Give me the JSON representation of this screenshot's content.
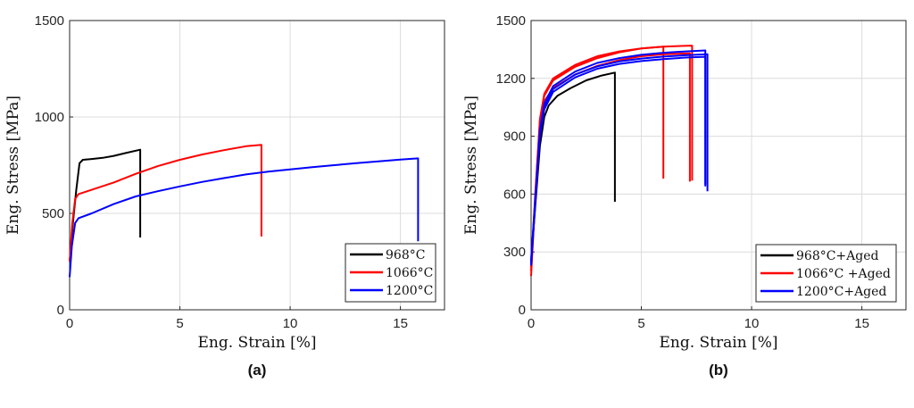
{
  "chart_data": [
    {
      "type": "line",
      "caption": "(a)",
      "xlabel": "Eng. Strain [%]",
      "ylabel": "Eng. Stress [MPa]",
      "xlim": [
        0,
        17
      ],
      "ylim": [
        0,
        1500
      ],
      "xticks": [
        0,
        5,
        10,
        15
      ],
      "yticks": [
        0,
        500,
        1000,
        1500
      ],
      "grid": true,
      "legend_position": "bottom-right",
      "series": [
        {
          "name": "968°C",
          "color": "#000000",
          "curves": [
            [
              [
                0,
                250
              ],
              [
                0.15,
                450
              ],
              [
                0.3,
                620
              ],
              [
                0.45,
                760
              ],
              [
                0.6,
                778
              ],
              [
                1,
                782
              ],
              [
                1.5,
                788
              ],
              [
                2,
                798
              ],
              [
                2.5,
                812
              ],
              [
                3.2,
                830
              ],
              [
                3.2,
                375
              ]
            ]
          ]
        },
        {
          "name": "1066°C",
          "color": "#ff0000",
          "curves": [
            [
              [
                0,
                250
              ],
              [
                0.12,
                450
              ],
              [
                0.25,
                575
              ],
              [
                0.4,
                600
              ],
              [
                0.8,
                615
              ],
              [
                2,
                660
              ],
              [
                3,
                705
              ],
              [
                4,
                745
              ],
              [
                5,
                778
              ],
              [
                6,
                805
              ],
              [
                7,
                828
              ],
              [
                8,
                848
              ],
              [
                8.7,
                855
              ],
              [
                8.7,
                380
              ]
            ]
          ]
        },
        {
          "name": "1200°C",
          "color": "#0000ff",
          "curves": [
            [
              [
                0,
                170
              ],
              [
                0.1,
                330
              ],
              [
                0.25,
                450
              ],
              [
                0.4,
                475
              ],
              [
                1,
                500
              ],
              [
                2,
                548
              ],
              [
                3,
                588
              ],
              [
                4,
                615
              ],
              [
                5,
                640
              ],
              [
                6,
                663
              ],
              [
                7,
                683
              ],
              [
                8,
                702
              ],
              [
                9,
                716
              ],
              [
                10,
                728
              ],
              [
                11,
                740
              ],
              [
                12,
                750
              ],
              [
                13,
                760
              ],
              [
                14,
                770
              ],
              [
                15,
                779
              ],
              [
                15.8,
                785
              ],
              [
                15.8,
                355
              ]
            ]
          ]
        }
      ]
    },
    {
      "type": "line",
      "caption": "(b)",
      "xlabel": "Eng. Strain [%]",
      "ylabel": "Eng. Stress [MPa]",
      "xlim": [
        0,
        17
      ],
      "ylim": [
        0,
        1500
      ],
      "xticks": [
        0,
        5,
        10,
        15
      ],
      "yticks": [
        0,
        300,
        600,
        900,
        1200,
        1500
      ],
      "grid": true,
      "legend_position": "bottom-right",
      "series": [
        {
          "name": "968°C+Aged",
          "color": "#000000",
          "curves": [
            [
              [
                0,
                250
              ],
              [
                0.2,
                550
              ],
              [
                0.4,
                850
              ],
              [
                0.6,
                1000
              ],
              [
                0.8,
                1060
              ],
              [
                1.2,
                1110
              ],
              [
                1.8,
                1150
              ],
              [
                2.5,
                1190
              ],
              [
                3.2,
                1215
              ],
              [
                3.8,
                1230
              ],
              [
                3.8,
                560
              ]
            ]
          ]
        },
        {
          "name": "1066°C +Aged",
          "color": "#ff0000",
          "curves": [
            [
              [
                0,
                175
              ],
              [
                0.2,
                600
              ],
              [
                0.4,
                980
              ],
              [
                0.6,
                1110
              ],
              [
                1,
                1190
              ],
              [
                2,
                1260
              ],
              [
                3,
                1305
              ],
              [
                4,
                1335
              ],
              [
                5,
                1355
              ],
              [
                6,
                1365
              ],
              [
                6,
                680
              ]
            ],
            [
              [
                0,
                200
              ],
              [
                0.2,
                600
              ],
              [
                0.4,
                950
              ],
              [
                0.6,
                1080
              ],
              [
                1,
                1150
              ],
              [
                2,
                1220
              ],
              [
                3,
                1265
              ],
              [
                4,
                1295
              ],
              [
                5,
                1315
              ],
              [
                6,
                1325
              ],
              [
                7.2,
                1330
              ],
              [
                7.2,
                665
              ]
            ],
            [
              [
                0,
                220
              ],
              [
                0.2,
                620
              ],
              [
                0.4,
                990
              ],
              [
                0.6,
                1120
              ],
              [
                1,
                1200
              ],
              [
                2,
                1270
              ],
              [
                3,
                1315
              ],
              [
                4,
                1340
              ],
              [
                5,
                1355
              ],
              [
                6,
                1365
              ],
              [
                7.3,
                1370
              ],
              [
                7.3,
                670
              ]
            ]
          ]
        },
        {
          "name": "1200°C+Aged",
          "color": "#0000ff",
          "curves": [
            [
              [
                0,
                230
              ],
              [
                0.2,
                580
              ],
              [
                0.4,
                930
              ],
              [
                0.6,
                1070
              ],
              [
                1,
                1160
              ],
              [
                2,
                1235
              ],
              [
                3,
                1280
              ],
              [
                4,
                1305
              ],
              [
                5,
                1322
              ],
              [
                6,
                1333
              ],
              [
                7,
                1340
              ],
              [
                7.9,
                1345
              ],
              [
                7.9,
                650
              ]
            ],
            [
              [
                0,
                240
              ],
              [
                0.2,
                570
              ],
              [
                0.4,
                900
              ],
              [
                0.6,
                1040
              ],
              [
                1,
                1130
              ],
              [
                2,
                1205
              ],
              [
                3,
                1250
              ],
              [
                4,
                1275
              ],
              [
                5,
                1290
              ],
              [
                6,
                1300
              ],
              [
                7,
                1308
              ],
              [
                7.9,
                1312
              ],
              [
                7.9,
                640
              ]
            ],
            [
              [
                0,
                260
              ],
              [
                0.2,
                590
              ],
              [
                0.4,
                920
              ],
              [
                0.6,
                1055
              ],
              [
                1,
                1145
              ],
              [
                2,
                1220
              ],
              [
                3,
                1262
              ],
              [
                4,
                1288
              ],
              [
                5,
                1303
              ],
              [
                6,
                1313
              ],
              [
                7,
                1320
              ],
              [
                8.0,
                1325
              ],
              [
                8.0,
                615
              ]
            ]
          ]
        }
      ]
    }
  ]
}
